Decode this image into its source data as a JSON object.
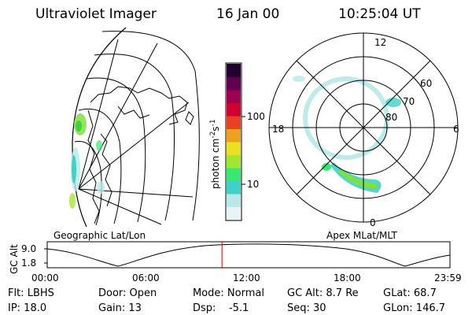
{
  "header": {
    "title": "Ultraviolet Imager",
    "date": "16 Jan 00",
    "time": "10:25:04 UT"
  },
  "colorbar": {
    "label": "photon cm",
    "label_sup1": "-2",
    "label_mid": "s",
    "label_sup2": "-1",
    "ticks": [
      "100",
      "10"
    ],
    "colors": [
      "#e8f4f4",
      "#b8e8e8",
      "#40d0c8",
      "#38e870",
      "#a0e830",
      "#e8e020",
      "#f0a020",
      "#e84020",
      "#d00030",
      "#a00050",
      "#600050",
      "#200030"
    ]
  },
  "left_map": {
    "caption": "Geographic Lat/Lon"
  },
  "right_map": {
    "caption": "Apex MLat/MLT",
    "mlt_labels": {
      "top": "12",
      "left": "18",
      "right": "6",
      "bottom": "0"
    },
    "lat_labels": [
      "60",
      "70",
      "80"
    ]
  },
  "altitude_plot": {
    "ylabel": "GC Alt",
    "yticks": [
      "9.0",
      "1.8"
    ],
    "xticks": [
      "00:00",
      "06:00",
      "12:00",
      "18:00",
      "23:59"
    ],
    "current_time_fraction": 0.434,
    "marker_color": "#e00000"
  },
  "info": {
    "filter": "Flt: LBHS",
    "door": "Door: Open",
    "mode": "Mode: Normal",
    "gc_alt": "GC Alt: 8.7 Re",
    "glat": "GLat:  68.7",
    "ip": "IP: 18.0",
    "gain": "Gain: 13",
    "dsp": "Dsp:    -5.1",
    "seq": "Seq: 30",
    "glon": "GLon: 146.7"
  }
}
